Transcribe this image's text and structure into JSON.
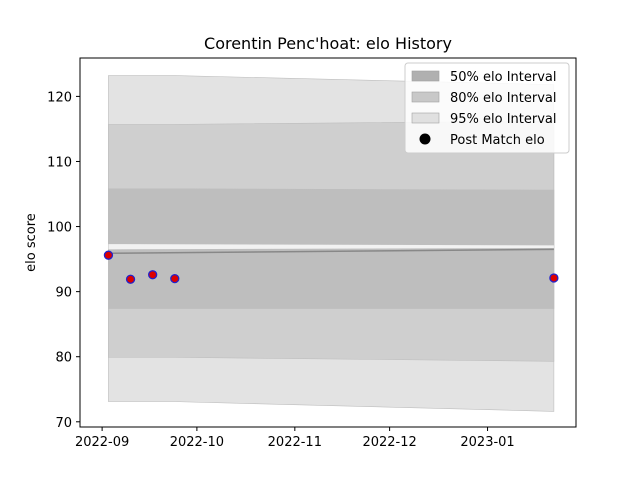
{
  "chart_data": {
    "type": "line",
    "title": "Corentin Penc'hoat: elo History",
    "xlabel": "",
    "ylabel": "elo score",
    "xlim": [
      "2022-08-25",
      "2023-01-29"
    ],
    "ylim": [
      69.2,
      125.9
    ],
    "x_ticks": [
      "2022-09",
      "2022-10",
      "2022-11",
      "2022-12",
      "2023-01"
    ],
    "x_tick_dates": [
      "2022-09-01",
      "2022-10-01",
      "2022-11-01",
      "2022-12-01",
      "2023-01-01"
    ],
    "y_ticks": [
      70,
      80,
      90,
      100,
      110,
      120
    ],
    "grid": false,
    "legend_position": "top-right",
    "bands": [
      {
        "name": "95% elo Interval",
        "color": "#e3e3e3",
        "x": [
          "2022-09-03",
          "2022-09-24",
          "2023-01-22"
        ],
        "lower": [
          73.1,
          73.1,
          71.6
        ],
        "upper": [
          123.2,
          123.2,
          121.8
        ]
      },
      {
        "name": "80% elo Interval",
        "color": "#cfcfcf",
        "x": [
          "2022-09-03",
          "2022-09-24",
          "2023-01-22"
        ],
        "lower": [
          79.9,
          79.9,
          79.3
        ],
        "upper": [
          115.7,
          115.7,
          116.2
        ]
      },
      {
        "name": "50% elo Interval",
        "color": "#bebebe",
        "x": [
          "2022-09-03",
          "2022-09-24",
          "2023-01-22"
        ],
        "lower": [
          87.4,
          87.4,
          87.4
        ],
        "upper": [
          105.8,
          105.8,
          105.6
        ]
      }
    ],
    "gap_band": {
      "x": [
        "2022-09-03",
        "2023-01-22"
      ],
      "lower": [
        96.5,
        96.7
      ],
      "upper": [
        97.3,
        97.1
      ]
    },
    "mean_line": {
      "x": [
        "2022-09-03",
        "2023-01-22"
      ],
      "y": [
        95.9,
        96.5
      ],
      "color": "#888888"
    },
    "series": [
      {
        "name": "Post Match elo",
        "x": [
          "2022-09-03",
          "2022-09-10",
          "2022-09-17",
          "2022-09-24",
          "2023-01-22"
        ],
        "y": [
          95.6,
          91.9,
          92.6,
          92.0,
          92.1
        ],
        "fill": "#dd0000",
        "edge": "#2222cc"
      }
    ],
    "legend": [
      {
        "label": "50% elo Interval",
        "kind": "patch",
        "color": "#b0b0b0"
      },
      {
        "label": "80% elo Interval",
        "kind": "patch",
        "color": "#c8c8c8"
      },
      {
        "label": "95% elo Interval",
        "kind": "patch",
        "color": "#e0e0e0"
      },
      {
        "label": "Post Match elo",
        "kind": "marker",
        "color": "#000000"
      }
    ]
  }
}
